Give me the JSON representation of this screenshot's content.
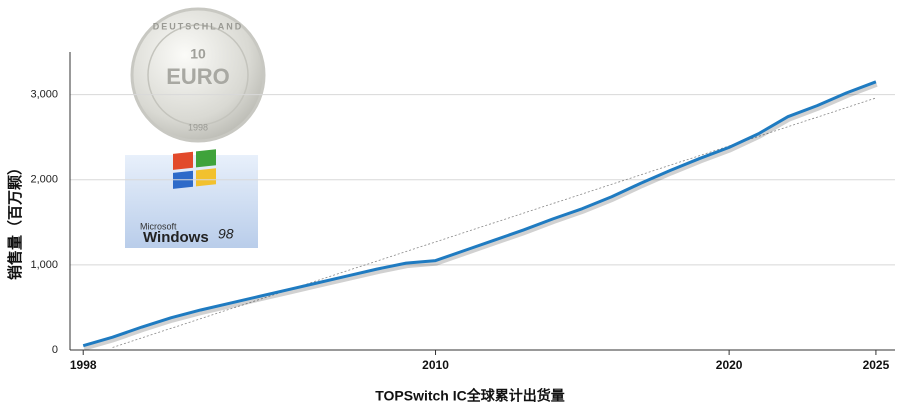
{
  "chart_data": {
    "type": "line",
    "y_label": "销售量（百万颗）",
    "x_label": "TOPSwitch IC全球累计出货量",
    "x": [
      1998,
      1999,
      2000,
      2001,
      2002,
      2003,
      2004,
      2005,
      2006,
      2007,
      2008,
      2009,
      2010,
      2011,
      2012,
      2013,
      2014,
      2015,
      2016,
      2017,
      2018,
      2019,
      2020,
      2021,
      2022,
      2023,
      2024,
      2025
    ],
    "series": [
      {
        "color": "#1f7bc1",
        "values": [
          50,
          150,
          270,
          380,
          470,
          550,
          630,
          710,
          790,
          870,
          950,
          1020,
          1050,
          1170,
          1290,
          1410,
          1540,
          1660,
          1800,
          1960,
          2110,
          2250,
          2380,
          2540,
          2740,
          2870,
          3020,
          3150
        ]
      }
    ],
    "trendline": {
      "x": [
        1999,
        2025
      ],
      "values": [
        30,
        2960
      ],
      "color": "#888888"
    },
    "xlim": [
      1997.55,
      2025.65
    ],
    "xticks": [
      1998,
      2010,
      2020,
      2025
    ],
    "ylim": [
      0,
      3500
    ],
    "yticks": [
      0,
      {
        "value": 1000,
        "label": "1,000"
      },
      {
        "value": 2000,
        "label": "2,000"
      },
      {
        "value": 3000,
        "label": "3,000"
      }
    ],
    "grid": true
  },
  "decor": {
    "coin": {
      "country": "DEUTSCHLAND",
      "denomination": "10",
      "currency": "EURO",
      "year": "1998"
    },
    "windows": {
      "maker": "Microsoft",
      "product": "Windows",
      "version": "98"
    }
  }
}
